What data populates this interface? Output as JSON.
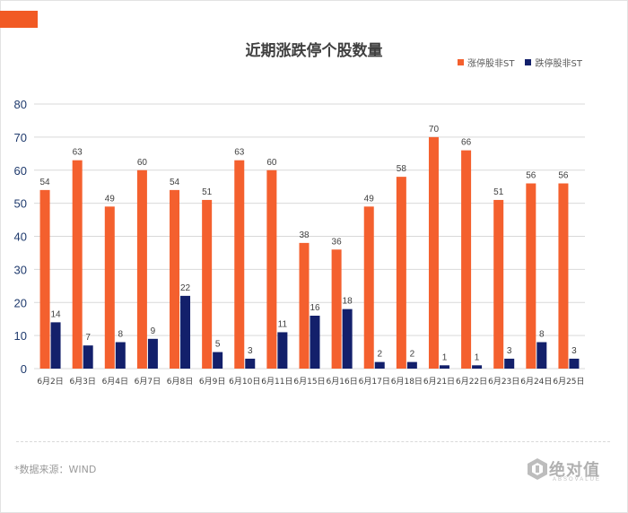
{
  "header": {
    "title": "近期涨跌停个股数量"
  },
  "colors": {
    "accent": "#f15a24",
    "up": "#f4602e",
    "down": "#13206b",
    "grid": "#d9d9d9",
    "axis_text": "#1f3a6d"
  },
  "legend": [
    {
      "label": "涨停股非ST",
      "color": "#f4602e"
    },
    {
      "label": "跌停股非ST",
      "color": "#13206b"
    }
  ],
  "chart_data": {
    "type": "bar",
    "title": "近期涨跌停个股数量",
    "categories": [
      "6月2日",
      "6月3日",
      "6月4日",
      "6月7日",
      "6月8日",
      "6月9日",
      "6月10日",
      "6月11日",
      "6月15日",
      "6月16日",
      "6月17日",
      "6月18日",
      "6月21日",
      "6月22日",
      "6月23日",
      "6月24日",
      "6月25日"
    ],
    "series": [
      {
        "name": "涨停股非ST",
        "values": [
          54,
          63,
          49,
          60,
          54,
          51,
          63,
          60,
          38,
          36,
          49,
          58,
          70,
          66,
          51,
          56,
          56
        ]
      },
      {
        "name": "跌停股非ST",
        "values": [
          14,
          7,
          8,
          9,
          22,
          5,
          3,
          11,
          16,
          18,
          2,
          2,
          1,
          1,
          3,
          8,
          3
        ]
      }
    ],
    "yticks": [
      0,
      10,
      20,
      30,
      40,
      50,
      60,
      70,
      80
    ],
    "ylim": [
      0,
      80
    ],
    "grid": true,
    "legend_position": "top-right"
  },
  "footer": {
    "source": "*数据来源：WIND",
    "logo": "绝对值",
    "logo_sub": "ABSOVALUE"
  }
}
